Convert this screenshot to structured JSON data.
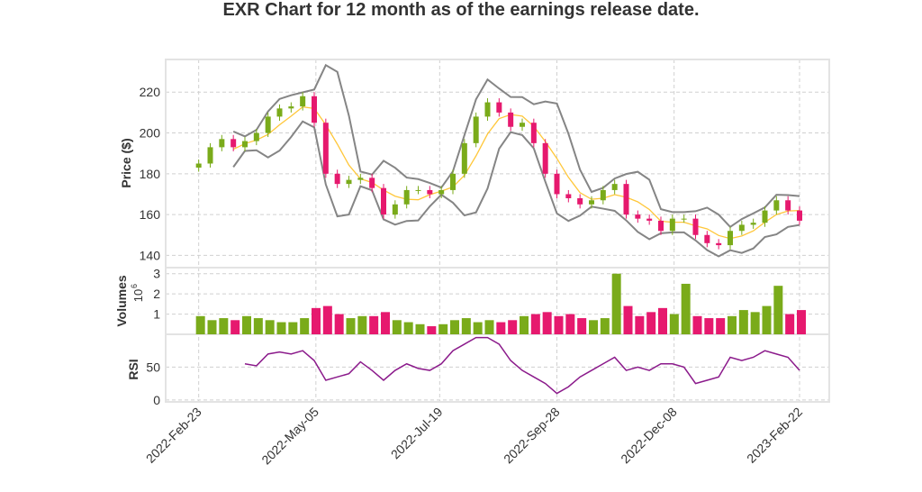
{
  "chart_data": {
    "type": "candlestick",
    "title": "EXR Chart for 12 month as of the earnings release date.",
    "x_start": "2022-02-23",
    "x_step_days": 7,
    "x_ticks": [
      "2022-Feb-23",
      "2022-May-05",
      "2022-Jul-19",
      "2022-Sep-28",
      "2022-Dec-08",
      "2023-Feb-22"
    ],
    "x_tick_dates": [
      "2022-02-23",
      "2022-05-05",
      "2022-07-19",
      "2022-09-28",
      "2022-12-08",
      "2023-02-22"
    ],
    "x_range": [
      "2022-02-03",
      "2023-03-12"
    ],
    "price": {
      "ylabel": "Price ($)",
      "ylim": [
        134,
        236
      ],
      "yticks": [
        140,
        160,
        180,
        200,
        220
      ],
      "close": [
        185,
        193,
        197,
        193,
        196,
        200,
        208,
        212,
        213,
        218,
        205,
        180,
        175,
        177,
        178,
        173,
        160,
        165,
        172,
        172,
        170,
        172,
        180,
        195,
        208,
        215,
        210,
        203,
        205,
        195,
        180,
        170,
        168,
        165,
        167,
        172,
        175,
        160,
        158,
        157,
        152,
        158,
        158,
        150,
        146,
        145,
        152,
        155,
        156,
        162,
        167,
        162,
        157
      ],
      "bollinger_window": 4,
      "bollinger_k": 2
    },
    "volume": {
      "ylabel": "Volumes",
      "unit_label": "10",
      "unit_exp": "6",
      "ylim": [
        0,
        3.3
      ],
      "yticks": [
        1,
        2,
        3
      ],
      "values": [
        0.9,
        0.7,
        0.8,
        0.7,
        0.9,
        0.8,
        0.7,
        0.6,
        0.6,
        0.8,
        1.3,
        1.4,
        1.0,
        0.8,
        0.9,
        0.9,
        1.1,
        0.7,
        0.6,
        0.5,
        0.4,
        0.5,
        0.7,
        0.8,
        0.6,
        0.7,
        0.6,
        0.7,
        0.9,
        1.0,
        1.1,
        0.9,
        1.0,
        0.8,
        0.7,
        0.8,
        3.0,
        1.4,
        0.9,
        1.1,
        1.3,
        1.0,
        2.5,
        0.9,
        0.8,
        0.8,
        0.9,
        1.2,
        1.1,
        1.4,
        2.4,
        1.0,
        1.2
      ]
    },
    "rsi": {
      "ylabel": "RSI",
      "ylim": [
        -3,
        100
      ],
      "yticks": [
        0,
        50
      ],
      "values": [
        null,
        null,
        null,
        null,
        55,
        52,
        70,
        73,
        70,
        75,
        60,
        30,
        35,
        40,
        58,
        45,
        30,
        45,
        55,
        48,
        45,
        55,
        75,
        85,
        95,
        95,
        85,
        60,
        45,
        35,
        25,
        10,
        20,
        35,
        45,
        55,
        65,
        45,
        50,
        45,
        55,
        55,
        50,
        25,
        30,
        35,
        65,
        60,
        65,
        75,
        70,
        65,
        45
      ]
    },
    "colors": {
      "up": "#7aab1a",
      "down": "#e6196e",
      "sma": "#ffc73a",
      "bands": "#858585",
      "rsi": "#8b1a8b"
    }
  }
}
